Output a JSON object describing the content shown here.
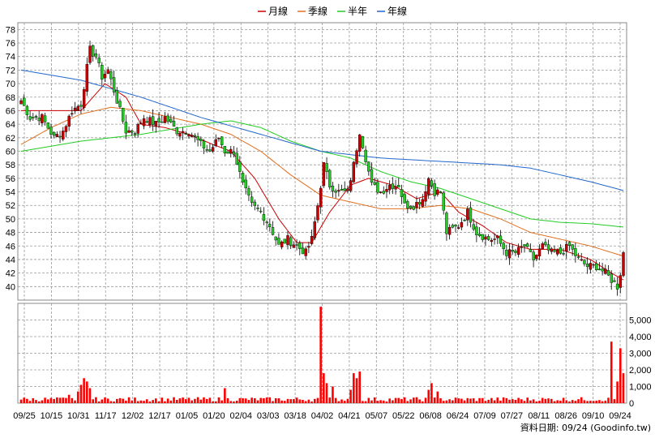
{
  "chart_data": [
    {
      "type": "candlestick",
      "legend": [
        {
          "name": "月線",
          "color": "#cc0000"
        },
        {
          "name": "季線",
          "color": "#e07020"
        },
        {
          "name": "半年",
          "color": "#22cc22"
        },
        {
          "name": "年線",
          "color": "#2266cc"
        }
      ],
      "ylim": [
        38,
        79
      ],
      "yticks": [
        40,
        42,
        44,
        46,
        48,
        50,
        52,
        54,
        56,
        58,
        60,
        62,
        64,
        66,
        68,
        70,
        72,
        74,
        76,
        78
      ],
      "grid": true,
      "up_color": "#cc0000",
      "down_color": "#22cc22",
      "close_anchors": [
        {
          "d": 0,
          "c": 67.5
        },
        {
          "d": 3,
          "c": 65
        },
        {
          "d": 7,
          "c": 65
        },
        {
          "d": 11,
          "c": 62
        },
        {
          "d": 14,
          "c": 63
        },
        {
          "d": 17,
          "c": 66
        },
        {
          "d": 20,
          "c": 67
        },
        {
          "d": 23,
          "c": 75
        },
        {
          "d": 25,
          "c": 74
        },
        {
          "d": 27,
          "c": 71
        },
        {
          "d": 29,
          "c": 72
        },
        {
          "d": 31,
          "c": 69
        },
        {
          "d": 33,
          "c": 66
        },
        {
          "d": 35,
          "c": 63
        },
        {
          "d": 38,
          "c": 63
        },
        {
          "d": 41,
          "c": 65
        },
        {
          "d": 45,
          "c": 64
        },
        {
          "d": 48,
          "c": 65
        },
        {
          "d": 52,
          "c": 63
        },
        {
          "d": 56,
          "c": 63
        },
        {
          "d": 60,
          "c": 61
        },
        {
          "d": 63,
          "c": 60
        },
        {
          "d": 66,
          "c": 62
        },
        {
          "d": 68,
          "c": 60
        },
        {
          "d": 71,
          "c": 60
        },
        {
          "d": 74,
          "c": 55
        },
        {
          "d": 77,
          "c": 52
        },
        {
          "d": 80,
          "c": 51
        },
        {
          "d": 83,
          "c": 49
        },
        {
          "d": 86,
          "c": 46
        },
        {
          "d": 89,
          "c": 47
        },
        {
          "d": 92,
          "c": 46
        },
        {
          "d": 95,
          "c": 45
        },
        {
          "d": 97,
          "c": 47
        },
        {
          "d": 99,
          "c": 52
        },
        {
          "d": 101,
          "c": 58
        },
        {
          "d": 103,
          "c": 55
        },
        {
          "d": 106,
          "c": 54
        },
        {
          "d": 109,
          "c": 54
        },
        {
          "d": 111,
          "c": 58
        },
        {
          "d": 113,
          "c": 63
        },
        {
          "d": 115,
          "c": 59
        },
        {
          "d": 117,
          "c": 55
        },
        {
          "d": 120,
          "c": 54
        },
        {
          "d": 123,
          "c": 55
        },
        {
          "d": 126,
          "c": 55
        },
        {
          "d": 128,
          "c": 52
        },
        {
          "d": 131,
          "c": 52
        },
        {
          "d": 134,
          "c": 53
        },
        {
          "d": 136,
          "c": 56
        },
        {
          "d": 138,
          "c": 54
        },
        {
          "d": 140,
          "c": 54
        },
        {
          "d": 142,
          "c": 48
        },
        {
          "d": 146,
          "c": 49
        },
        {
          "d": 149,
          "c": 51
        },
        {
          "d": 152,
          "c": 48
        },
        {
          "d": 156,
          "c": 47
        },
        {
          "d": 159,
          "c": 47
        },
        {
          "d": 162,
          "c": 45
        },
        {
          "d": 165,
          "c": 45
        },
        {
          "d": 168,
          "c": 46
        },
        {
          "d": 171,
          "c": 44
        },
        {
          "d": 174,
          "c": 46
        },
        {
          "d": 177,
          "c": 45
        },
        {
          "d": 180,
          "c": 45
        },
        {
          "d": 183,
          "c": 46
        },
        {
          "d": 186,
          "c": 44
        },
        {
          "d": 189,
          "c": 43
        },
        {
          "d": 192,
          "c": 43
        },
        {
          "d": 195,
          "c": 42
        },
        {
          "d": 197,
          "c": 41
        },
        {
          "d": 199,
          "c": 40
        },
        {
          "d": 200,
          "c": 42
        },
        {
          "d": 201,
          "c": 45
        }
      ],
      "ma_lines": [
        {
          "name": "月線",
          "color": "#cc0000",
          "points": [
            {
              "d": 0,
              "v": 66
            },
            {
              "d": 10,
              "v": 66
            },
            {
              "d": 20,
              "v": 66
            },
            {
              "d": 28,
              "v": 70
            },
            {
              "d": 35,
              "v": 68
            },
            {
              "d": 40,
              "v": 64
            },
            {
              "d": 48,
              "v": 63.5
            },
            {
              "d": 56,
              "v": 62.5
            },
            {
              "d": 64,
              "v": 61
            },
            {
              "d": 70,
              "v": 60
            },
            {
              "d": 78,
              "v": 56
            },
            {
              "d": 86,
              "v": 50
            },
            {
              "d": 92,
              "v": 46.5
            },
            {
              "d": 97,
              "v": 46.5
            },
            {
              "d": 103,
              "v": 51
            },
            {
              "d": 110,
              "v": 55
            },
            {
              "d": 116,
              "v": 56
            },
            {
              "d": 124,
              "v": 55
            },
            {
              "d": 132,
              "v": 53
            },
            {
              "d": 140,
              "v": 54
            },
            {
              "d": 146,
              "v": 51
            },
            {
              "d": 154,
              "v": 49
            },
            {
              "d": 162,
              "v": 46.5
            },
            {
              "d": 170,
              "v": 45.5
            },
            {
              "d": 180,
              "v": 45.5
            },
            {
              "d": 190,
              "v": 44
            },
            {
              "d": 197,
              "v": 42
            },
            {
              "d": 201,
              "v": 41
            }
          ]
        },
        {
          "name": "季線",
          "color": "#e07020",
          "points": [
            {
              "d": 0,
              "v": 61
            },
            {
              "d": 10,
              "v": 63.5
            },
            {
              "d": 20,
              "v": 65.5
            },
            {
              "d": 30,
              "v": 66.5
            },
            {
              "d": 40,
              "v": 66
            },
            {
              "d": 50,
              "v": 65
            },
            {
              "d": 60,
              "v": 64
            },
            {
              "d": 70,
              "v": 62.5
            },
            {
              "d": 80,
              "v": 60
            },
            {
              "d": 90,
              "v": 56.5
            },
            {
              "d": 100,
              "v": 53.5
            },
            {
              "d": 110,
              "v": 52.5
            },
            {
              "d": 120,
              "v": 51.5
            },
            {
              "d": 130,
              "v": 51.5
            },
            {
              "d": 140,
              "v": 52
            },
            {
              "d": 150,
              "v": 51.5
            },
            {
              "d": 160,
              "v": 50
            },
            {
              "d": 170,
              "v": 48
            },
            {
              "d": 180,
              "v": 47
            },
            {
              "d": 190,
              "v": 46
            },
            {
              "d": 201,
              "v": 44.5
            }
          ]
        },
        {
          "name": "半年",
          "color": "#22cc22",
          "points": [
            {
              "d": 0,
              "v": 60
            },
            {
              "d": 20,
              "v": 61.5
            },
            {
              "d": 40,
              "v": 62.5
            },
            {
              "d": 60,
              "v": 64
            },
            {
              "d": 70,
              "v": 64.5
            },
            {
              "d": 80,
              "v": 63.5
            },
            {
              "d": 90,
              "v": 61.5
            },
            {
              "d": 100,
              "v": 60
            },
            {
              "d": 110,
              "v": 59
            },
            {
              "d": 120,
              "v": 57
            },
            {
              "d": 130,
              "v": 55.5
            },
            {
              "d": 140,
              "v": 54.5
            },
            {
              "d": 150,
              "v": 53
            },
            {
              "d": 160,
              "v": 51.5
            },
            {
              "d": 170,
              "v": 50
            },
            {
              "d": 180,
              "v": 49.5
            },
            {
              "d": 190,
              "v": 49.3
            },
            {
              "d": 201,
              "v": 48.8
            }
          ]
        },
        {
          "name": "年線",
          "color": "#2266cc",
          "points": [
            {
              "d": 0,
              "v": 72
            },
            {
              "d": 20,
              "v": 70.5
            },
            {
              "d": 40,
              "v": 68
            },
            {
              "d": 60,
              "v": 65
            },
            {
              "d": 80,
              "v": 62.5
            },
            {
              "d": 100,
              "v": 60
            },
            {
              "d": 120,
              "v": 59
            },
            {
              "d": 140,
              "v": 58.5
            },
            {
              "d": 160,
              "v": 58
            },
            {
              "d": 170,
              "v": 57.5
            },
            {
              "d": 180,
              "v": 56.5
            },
            {
              "d": 190,
              "v": 55.5
            },
            {
              "d": 201,
              "v": 54.2
            }
          ]
        }
      ]
    },
    {
      "type": "bar",
      "title": "",
      "ylim": [
        0,
        6000
      ],
      "yticks": [
        0,
        1000,
        2000,
        3000,
        4000,
        5000
      ],
      "ytick_labels": [
        "0",
        "1,000",
        "2,000",
        "3,000",
        "4,000",
        "5,000"
      ],
      "bar_color": "#ff0000",
      "spikes": [
        {
          "d": 20,
          "v": 1100
        },
        {
          "d": 21,
          "v": 1500
        },
        {
          "d": 22,
          "v": 1300
        },
        {
          "d": 23,
          "v": 900
        },
        {
          "d": 19,
          "v": 700
        },
        {
          "d": 16,
          "v": 500
        },
        {
          "d": 68,
          "v": 900
        },
        {
          "d": 100,
          "v": 5800
        },
        {
          "d": 101,
          "v": 1800
        },
        {
          "d": 102,
          "v": 1200
        },
        {
          "d": 104,
          "v": 1000
        },
        {
          "d": 111,
          "v": 1800
        },
        {
          "d": 112,
          "v": 1500
        },
        {
          "d": 113,
          "v": 1900
        },
        {
          "d": 110,
          "v": 800
        },
        {
          "d": 136,
          "v": 800
        },
        {
          "d": 137,
          "v": 1200
        },
        {
          "d": 139,
          "v": 700
        },
        {
          "d": 197,
          "v": 3700
        },
        {
          "d": 199,
          "v": 1300
        },
        {
          "d": 200,
          "v": 3300
        },
        {
          "d": 201,
          "v": 1800
        }
      ],
      "x_dates": [
        "09/25",
        "10/15",
        "10/31",
        "11/17",
        "12/02",
        "12/17",
        "01/05",
        "01/20",
        "02/04",
        "03/03",
        "03/18",
        "04/02",
        "04/21",
        "05/07",
        "05/22",
        "06/08",
        "06/24",
        "07/09",
        "07/27",
        "08/11",
        "08/26",
        "09/10",
        "09/24"
      ]
    }
  ],
  "credit": "資料日期: 09/24  (Goodinfo.tw)"
}
